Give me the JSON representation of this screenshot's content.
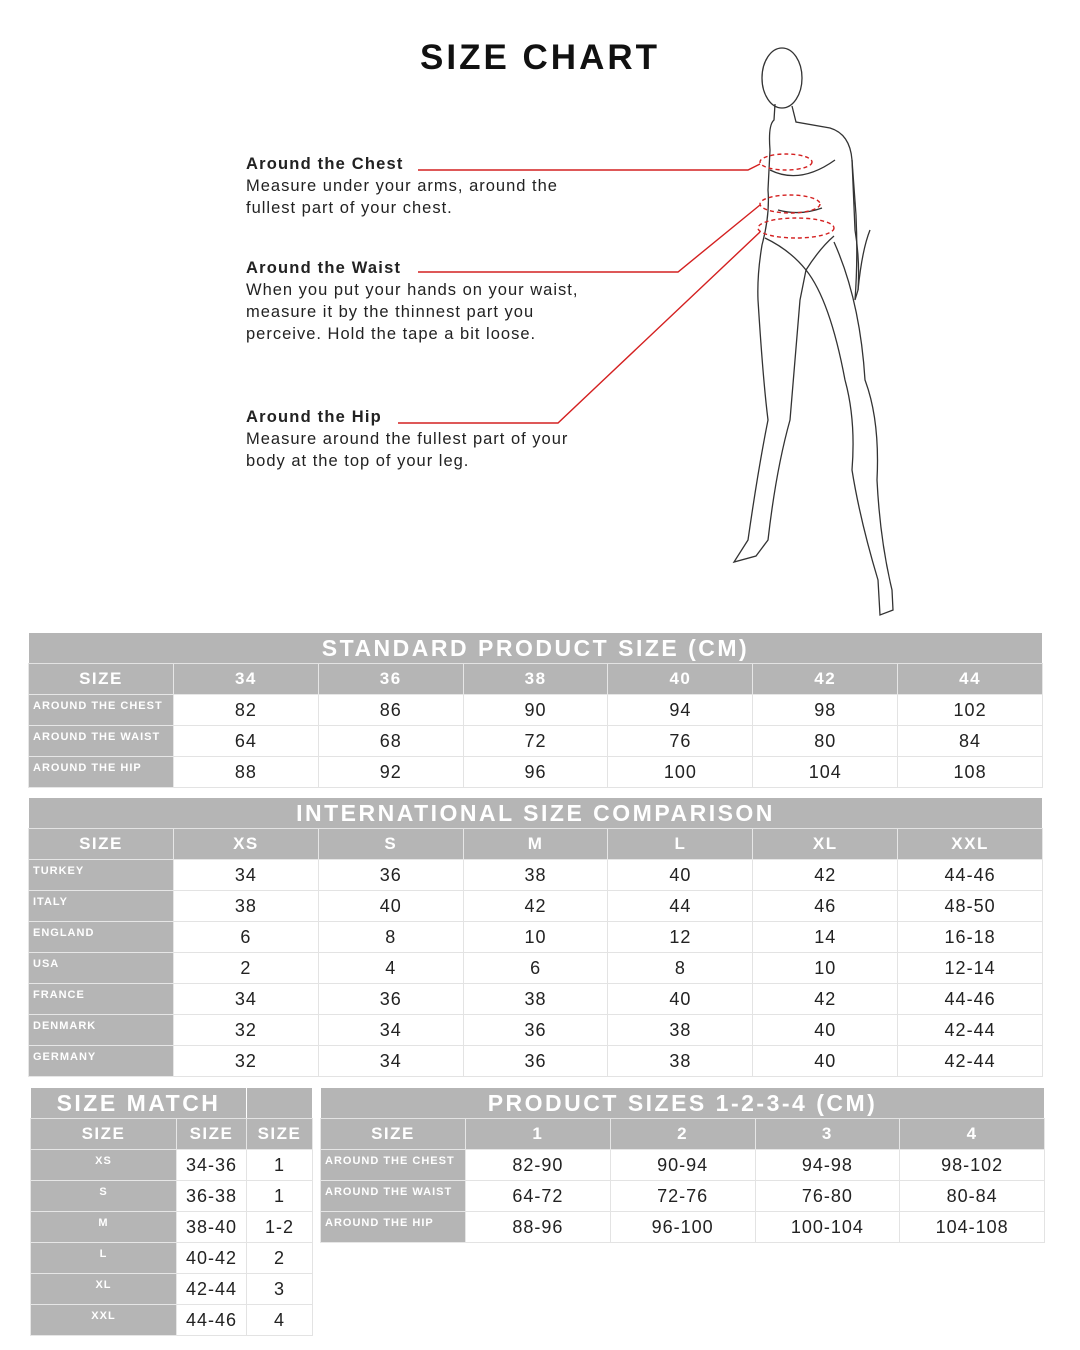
{
  "title": "SIZE CHART",
  "measurements": [
    {
      "heading": "Around the Chest",
      "lines": [
        "Measure under your arms, around the",
        "fullest part of your chest."
      ]
    },
    {
      "heading": "Around the Waist",
      "lines": [
        "When you put your hands on your waist,",
        "measure it by the thinnest part you",
        "perceive. Hold the tape a bit loose."
      ]
    },
    {
      "heading": "Around the Hip",
      "lines": [
        "Measure around the fullest part of your",
        "body at the top of your leg."
      ]
    }
  ],
  "colors": {
    "header_gray": "#b5b5b5",
    "leader_red": "#d42020"
  },
  "standard": {
    "title": "STANDARD PRODUCT SIZE (CM)",
    "header": [
      "SIZE",
      "34",
      "36",
      "38",
      "40",
      "42",
      "44"
    ],
    "rows": [
      [
        "AROUND THE CHEST",
        "82",
        "86",
        "90",
        "94",
        "98",
        "102"
      ],
      [
        "AROUND THE WAIST",
        "64",
        "68",
        "72",
        "76",
        "80",
        "84"
      ],
      [
        "AROUND THE HIP",
        "88",
        "92",
        "96",
        "100",
        "104",
        "108"
      ]
    ]
  },
  "international": {
    "title": "INTERNATIONAL SIZE COMPARISON",
    "header": [
      "SIZE",
      "XS",
      "S",
      "M",
      "L",
      "XL",
      "XXL"
    ],
    "rows": [
      [
        "TURKEY",
        "34",
        "36",
        "38",
        "40",
        "42",
        "44-46"
      ],
      [
        "ITALY",
        "38",
        "40",
        "42",
        "44",
        "46",
        "48-50"
      ],
      [
        "ENGLAND",
        "6",
        "8",
        "10",
        "12",
        "14",
        "16-18"
      ],
      [
        "USA",
        "2",
        "4",
        "6",
        "8",
        "10",
        "12-14"
      ],
      [
        "FRANCE",
        "34",
        "36",
        "38",
        "40",
        "42",
        "44-46"
      ],
      [
        "DENMARK",
        "32",
        "34",
        "36",
        "38",
        "40",
        "42-44"
      ],
      [
        "GERMANY",
        "32",
        "34",
        "36",
        "38",
        "40",
        "42-44"
      ]
    ]
  },
  "size_match": {
    "title": "SIZE MATCH",
    "header": [
      "SIZE",
      "SIZE",
      "SIZE"
    ],
    "rows": [
      [
        "XS",
        "34-36",
        "1"
      ],
      [
        "S",
        "36-38",
        "1"
      ],
      [
        "M",
        "38-40",
        "1-2"
      ],
      [
        "L",
        "40-42",
        "2"
      ],
      [
        "XL",
        "42-44",
        "3"
      ],
      [
        "XXL",
        "44-46",
        "4"
      ]
    ]
  },
  "product_sizes": {
    "title": "PRODUCT SIZES 1-2-3-4 (CM)",
    "header": [
      "SIZE",
      "1",
      "2",
      "3",
      "4"
    ],
    "rows": [
      [
        "AROUND THE CHEST",
        "82-90",
        "90-94",
        "94-98",
        "98-102"
      ],
      [
        "AROUND THE WAIST",
        "64-72",
        "72-76",
        "76-80",
        "80-84"
      ],
      [
        "AROUND THE HIP",
        "88-96",
        "96-100",
        "100-104",
        "104-108"
      ]
    ]
  }
}
